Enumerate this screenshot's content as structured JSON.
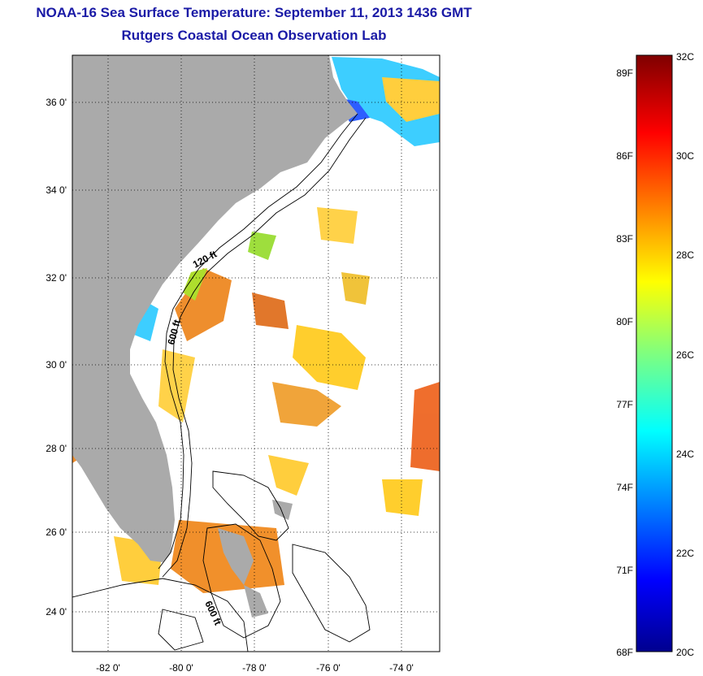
{
  "title": "NOAA-16 Sea Surface Temperature:  September 11, 2013 1436 GMT",
  "subtitle": "Rutgers Coastal Ocean Observation Lab",
  "map": {
    "lat_labels": [
      "36 0'",
      "34 0'",
      "32 0'",
      "30 0'",
      "28 0'",
      "26 0'",
      "24 0'"
    ],
    "lon_labels": [
      "-82 0'",
      "-80 0'",
      "-78 0'",
      "-76 0'",
      "-74 0'"
    ],
    "contour_labels": [
      "120 ft",
      "600 ft",
      "600 ft"
    ],
    "land_color": "#aaaaaa",
    "ocean_color": "#ffffff"
  },
  "colorbar": {
    "min_c": 20,
    "max_c": 32,
    "celsius_labels": [
      "32C",
      "30C",
      "28C",
      "26C",
      "24C",
      "22C",
      "20C"
    ],
    "fahrenheit_labels": [
      "89F",
      "86F",
      "83F",
      "80F",
      "77F",
      "74F",
      "71F",
      "68F"
    ]
  }
}
